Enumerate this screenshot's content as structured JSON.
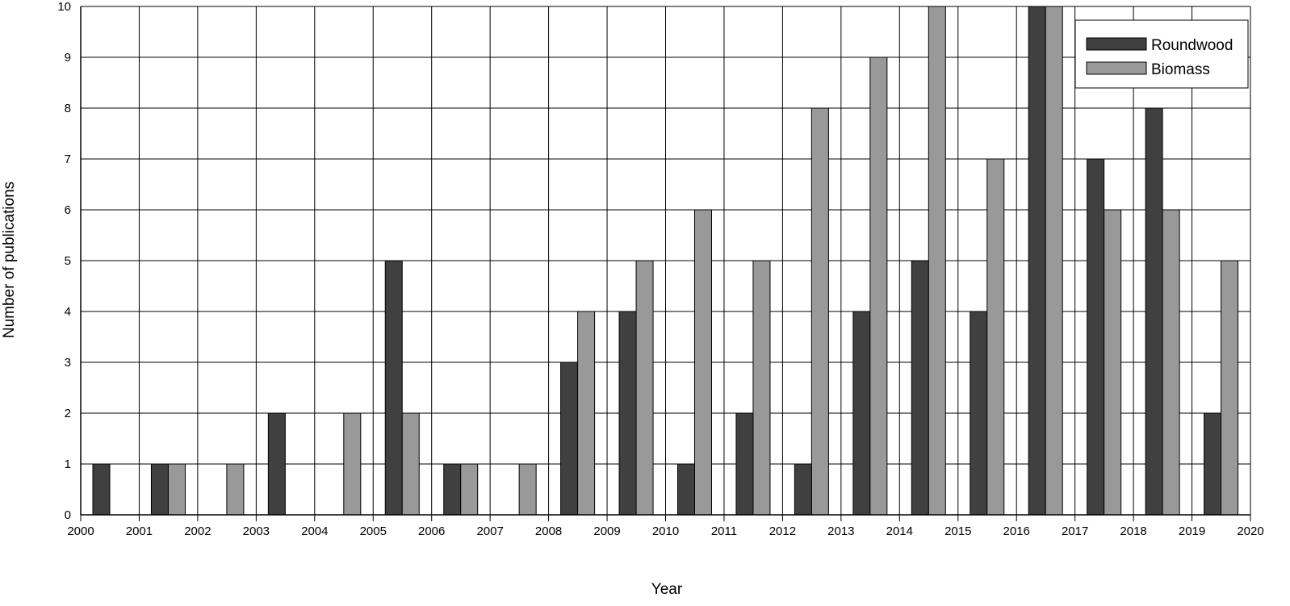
{
  "chart_data": {
    "type": "bar",
    "title": "",
    "xlabel": "Year",
    "ylabel": "Number of publications",
    "x_tick_labels": [
      "2000",
      "2001",
      "2002",
      "2003",
      "2004",
      "2005",
      "2006",
      "2007",
      "2008",
      "2009",
      "2010",
      "2011",
      "2012",
      "2013",
      "2014",
      "2015",
      "2016",
      "2017",
      "2018",
      "2019",
      "2020"
    ],
    "categories": [
      "2000",
      "2001",
      "2002",
      "2003",
      "2004",
      "2005",
      "2006",
      "2007",
      "2008",
      "2009",
      "2010",
      "2011",
      "2012",
      "2013",
      "2014",
      "2015",
      "2016",
      "2017",
      "2018",
      "2019"
    ],
    "series": [
      {
        "name": "Roundwood",
        "color": "#404040",
        "values": [
          1,
          1,
          0,
          2,
          0,
          5,
          1,
          0,
          3,
          4,
          1,
          2,
          1,
          4,
          5,
          4,
          10,
          7,
          8,
          2
        ]
      },
      {
        "name": "Biomass",
        "color": "#999999",
        "values": [
          0,
          1,
          1,
          0,
          2,
          2,
          1,
          1,
          4,
          5,
          6,
          5,
          8,
          9,
          10,
          7,
          10,
          6,
          6,
          5
        ]
      }
    ],
    "ylim": [
      0,
      10
    ],
    "y_ticks": [
      0,
      1,
      2,
      3,
      4,
      5,
      6,
      7,
      8,
      9,
      10
    ],
    "grid": true,
    "legend_position": "top-right"
  }
}
